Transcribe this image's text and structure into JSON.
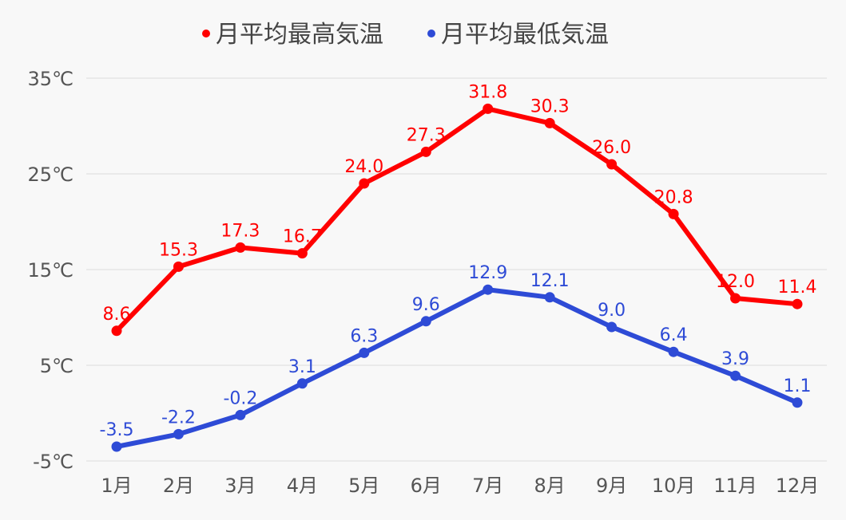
{
  "chart_data": {
    "type": "line",
    "categories": [
      "1月",
      "2月",
      "3月",
      "4月",
      "5月",
      "6月",
      "7月",
      "8月",
      "9月",
      "10月",
      "11月",
      "12月"
    ],
    "series": [
      {
        "name": "月平均最高気温",
        "color": "#ff0000",
        "values": [
          8.6,
          15.3,
          17.3,
          16.7,
          24.0,
          27.3,
          31.8,
          30.3,
          26.0,
          20.8,
          12.0,
          11.4
        ]
      },
      {
        "name": "月平均最低気温",
        "color": "#2e4bd6",
        "values": [
          -3.5,
          -2.2,
          -0.2,
          3.1,
          6.3,
          9.6,
          12.9,
          12.1,
          9.0,
          6.4,
          3.9,
          1.1
        ]
      }
    ],
    "yticks": [
      "-5℃",
      "5℃",
      "15℃",
      "25℃",
      "35℃"
    ],
    "ytick_values": [
      -5,
      5,
      15,
      25,
      35
    ],
    "ylim": [
      -5,
      35
    ],
    "grid": true,
    "legend": "top-center",
    "data_labels": true
  }
}
